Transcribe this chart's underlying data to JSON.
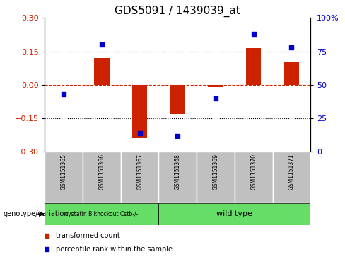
{
  "title": "GDS5091 / 1439039_at",
  "samples": [
    "GSM1151365",
    "GSM1151366",
    "GSM1151367",
    "GSM1151368",
    "GSM1151369",
    "GSM1151370",
    "GSM1151371"
  ],
  "red_bars": [
    0.0,
    0.12,
    -0.24,
    -0.13,
    -0.01,
    0.165,
    0.1
  ],
  "blue_dots": [
    43,
    80,
    14,
    12,
    40,
    88,
    78
  ],
  "ylim_left": [
    -0.3,
    0.3
  ],
  "ylim_right": [
    0,
    100
  ],
  "yticks_left": [
    -0.3,
    -0.15,
    0,
    0.15,
    0.3
  ],
  "yticks_right": [
    0,
    25,
    50,
    75,
    100
  ],
  "hlines": [
    0.15,
    -0.15
  ],
  "group1_label": "cystatin B knockout Cstb-/-",
  "group2_label": "wild type",
  "group_color": "#66DD66",
  "group1_samples": [
    0,
    1,
    2
  ],
  "group2_samples": [
    3,
    4,
    5,
    6
  ],
  "bar_color": "#CC2200",
  "dot_color": "#0000CC",
  "legend_label_bar": "transformed count",
  "legend_label_dot": "percentile rank within the sample",
  "genotype_label": "genotype/variation",
  "bg_color": "#FFFFFF",
  "tick_bg_color": "#C0C0C0",
  "title_fontsize": 11,
  "axis_fontsize": 8
}
